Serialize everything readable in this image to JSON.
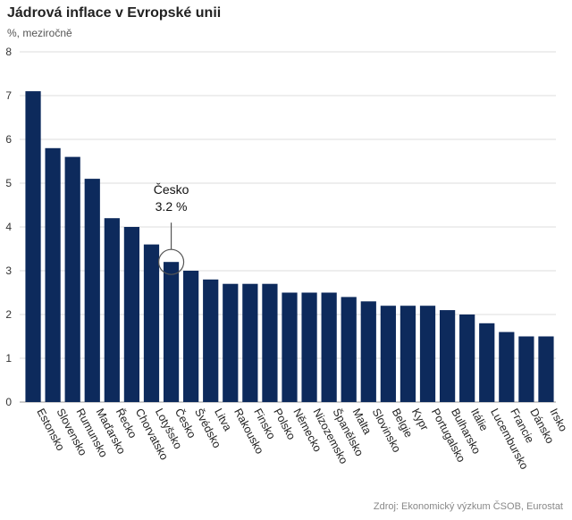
{
  "header": {
    "title": "Jádrová inflace v Evropské unii",
    "subtitle": "%, meziročně"
  },
  "footer": {
    "source": "Zdroj: Ekonomický výzkum ČSOB, Eurostat"
  },
  "chart_data": {
    "type": "bar",
    "title": "Jádrová inflace v Evropské unii",
    "subtitle": "%, meziročně",
    "xlabel": "",
    "ylabel": "",
    "ylim": [
      0,
      8
    ],
    "yticks": [
      0,
      1,
      2,
      3,
      4,
      5,
      6,
      7,
      8
    ],
    "grid": true,
    "bar_color": "#0d2a5c",
    "categories": [
      "Estonsko",
      "Slovensko",
      "Rumunsko",
      "Maďarsko",
      "Řecko",
      "Chorvatsko",
      "Lotyšsko",
      "Česko",
      "Švédsko",
      "Litva",
      "Rakousko",
      "Finsko",
      "Polsko",
      "Německo",
      "Nizozemsko",
      "Španělsko",
      "Malta",
      "Slovinsko",
      "Belgie",
      "Kypr",
      "Portugalsko",
      "Bulharsko",
      "Itálie",
      "Lucembursko",
      "Francie",
      "Dánsko",
      "Irsko"
    ],
    "values": [
      7.1,
      5.8,
      5.6,
      5.1,
      4.2,
      4.0,
      3.6,
      3.2,
      3.0,
      2.8,
      2.7,
      2.7,
      2.7,
      2.5,
      2.5,
      2.5,
      2.4,
      2.3,
      2.2,
      2.2,
      2.2,
      2.1,
      2.0,
      1.8,
      1.6,
      1.5,
      1.5
    ],
    "annotation": {
      "category": "Česko",
      "line1": "Česko",
      "line2": "3.2 %"
    }
  }
}
